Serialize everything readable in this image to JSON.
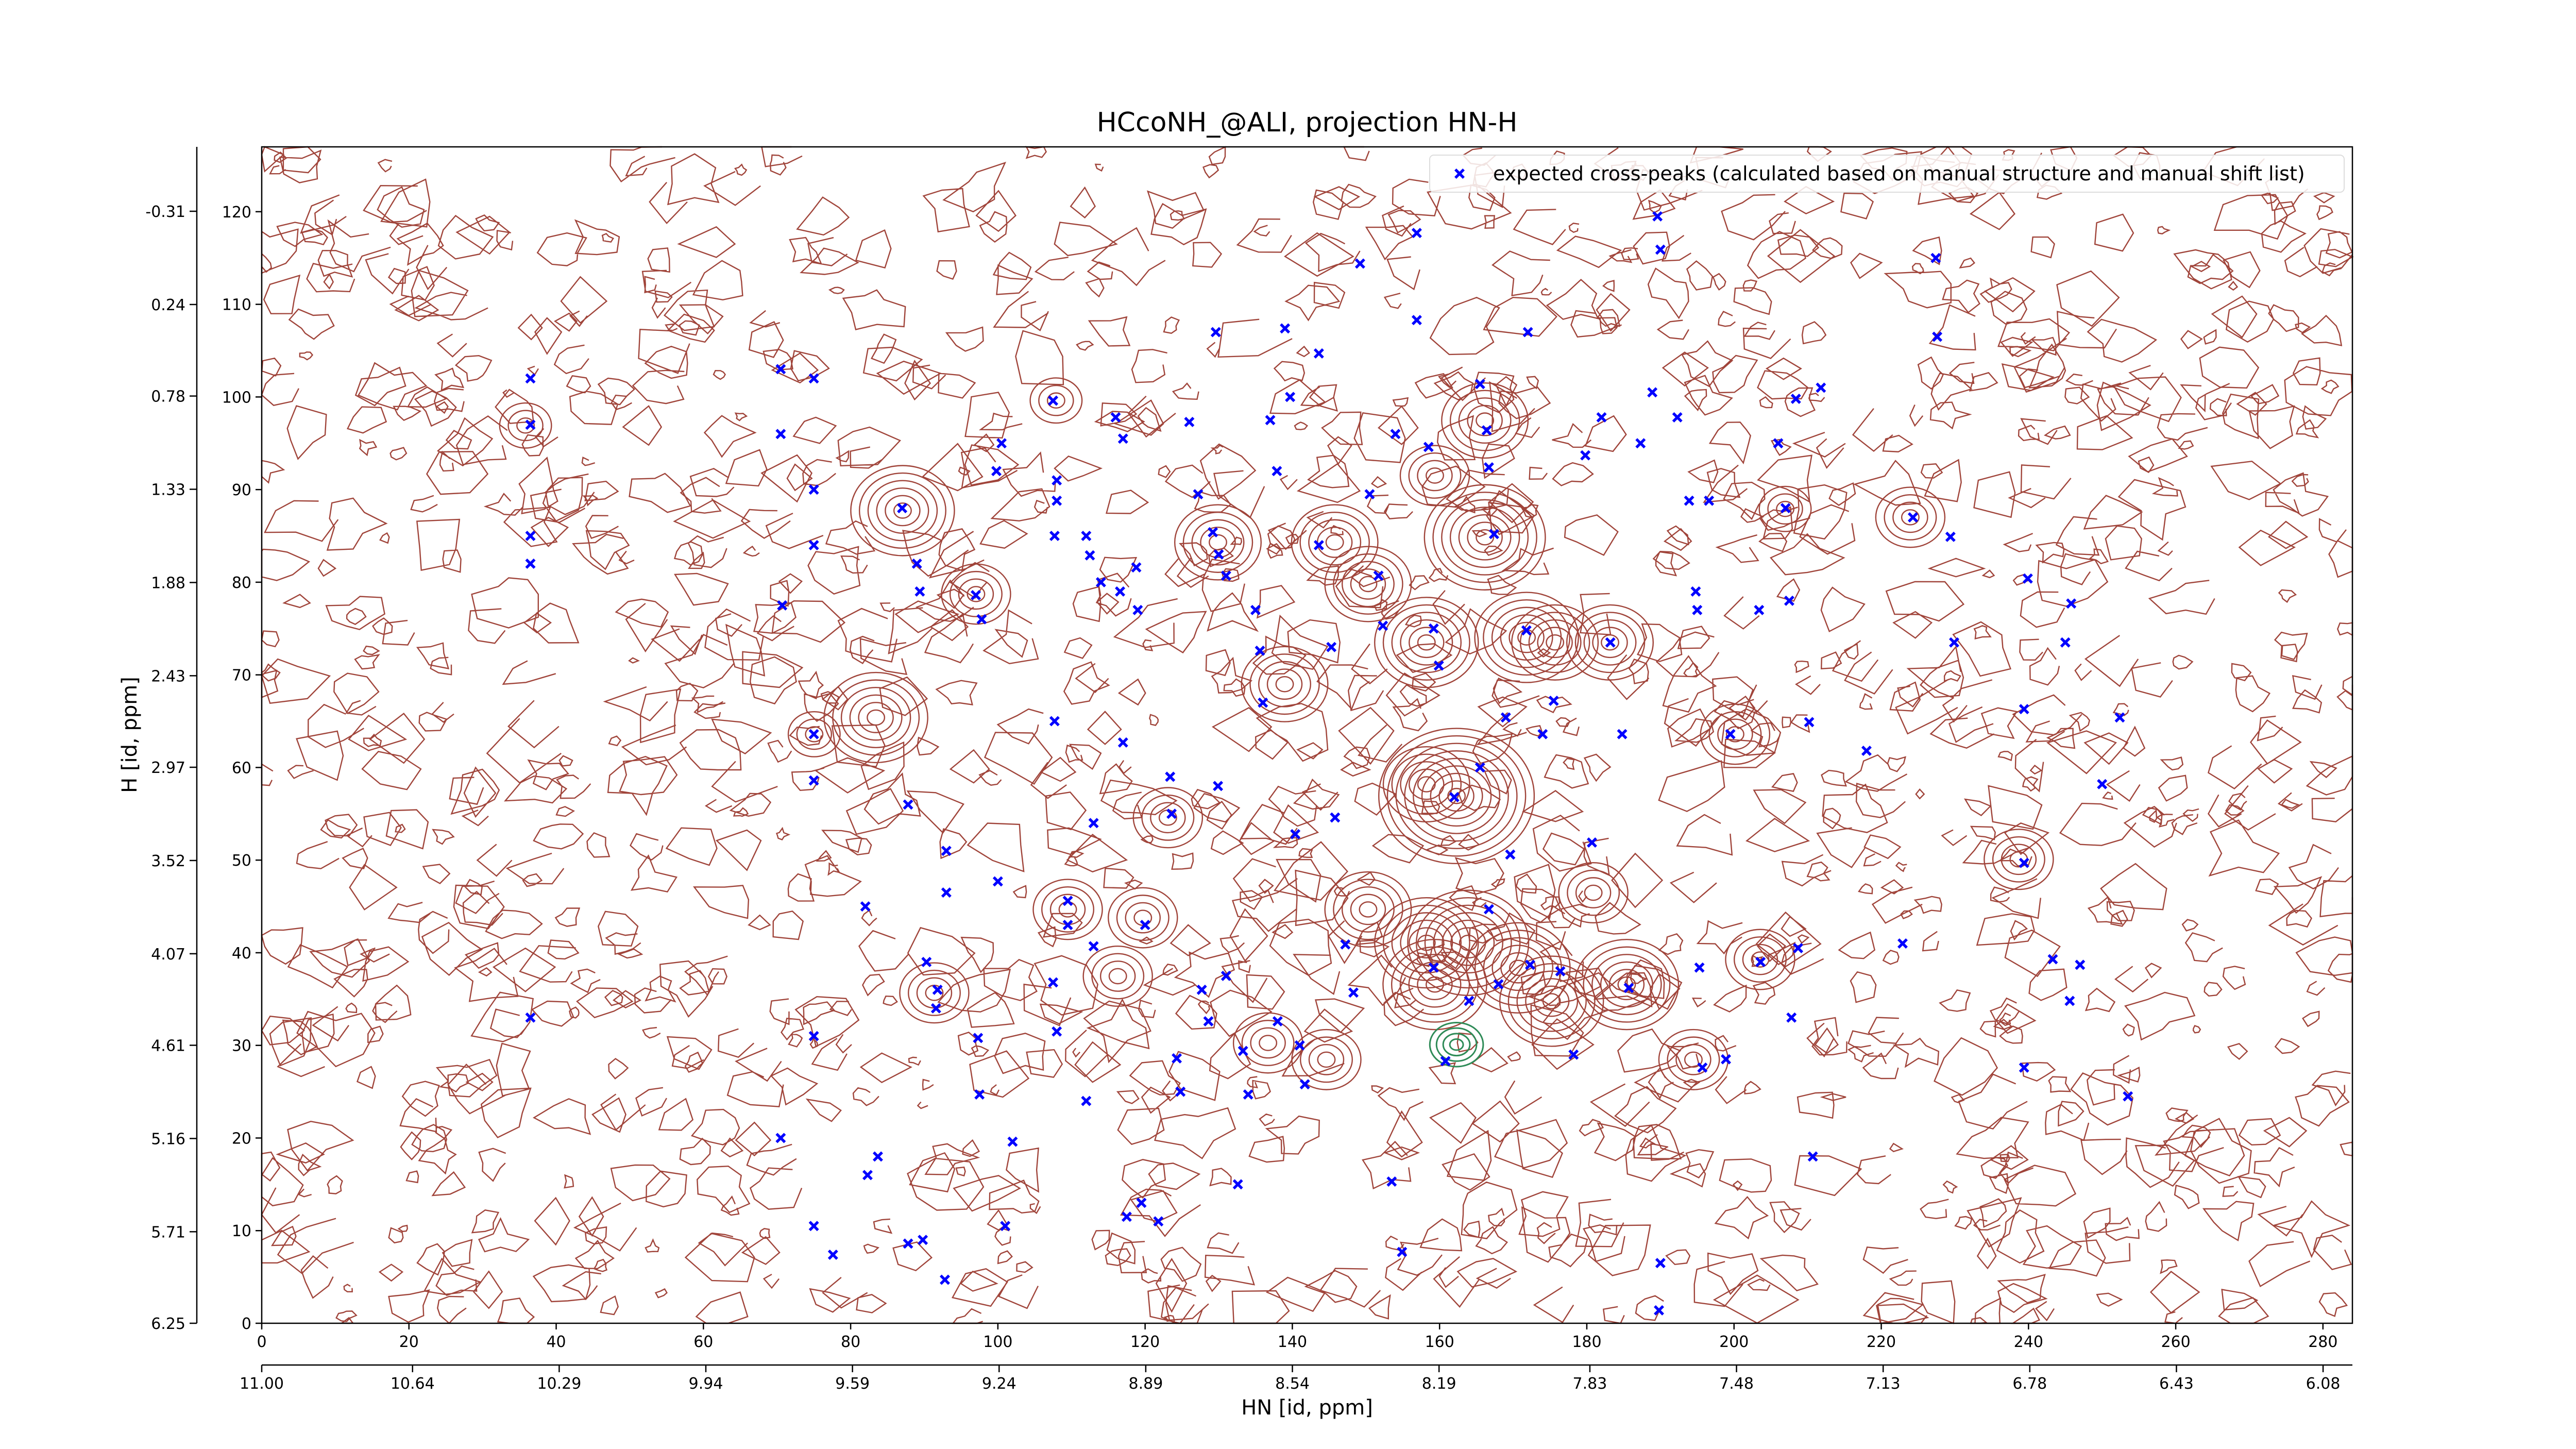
{
  "chart_data": {
    "type": "scatter",
    "title": "HCcoNH_@ALI, projection HN-H",
    "xlabel": "HN [id, ppm]",
    "ylabel": "H [id, ppm]",
    "xlim": [
      0,
      284
    ],
    "xticks": [
      0,
      20,
      40,
      60,
      80,
      100,
      120,
      140,
      160,
      180,
      200,
      220,
      240,
      260,
      280
    ],
    "ylim": [
      0,
      127
    ],
    "yticks": [
      0,
      10,
      20,
      30,
      40,
      50,
      60,
      70,
      80,
      90,
      100,
      110,
      120
    ],
    "x2lim": [
      11.0,
      6.01
    ],
    "x2ticks": [
      {
        "value": 11.0,
        "label": "11.00"
      },
      10.64,
      10.29,
      9.94,
      9.59,
      9.24,
      8.89,
      8.54,
      8.19,
      7.83,
      7.48,
      7.13,
      6.78,
      6.43,
      6.08
    ],
    "y2lim": [
      6.25,
      -0.69
    ],
    "y2ticks": [
      6.25,
      5.71,
      5.16,
      4.61,
      4.07,
      3.52,
      2.97,
      2.43,
      1.88,
      1.33,
      0.78,
      0.24,
      -0.31
    ],
    "legend": "upper right",
    "series": [
      {
        "name": "expected cross-peaks (calculated based on manual structure and manual shift list)",
        "color": "#0000ff",
        "x": [
          36.5,
          36.5,
          36.5,
          36.5,
          36.5,
          70.5,
          70.5,
          70.7,
          70.5,
          75,
          75,
          75,
          75,
          75,
          75,
          75,
          77.6,
          82,
          82.3,
          83.7,
          87,
          87.8,
          89,
          89.4,
          90.3,
          91.6,
          91.8,
          87.8,
          89.8,
          92.8,
          93,
          93,
          97,
          97.8,
          97.3,
          97.5,
          100,
          100.5,
          99.8,
          101,
          102,
          107.5,
          108,
          108,
          107.7,
          107.7,
          107.5,
          108,
          109.5,
          109.5,
          112,
          112.5,
          113,
          112,
          113,
          114,
          116,
          117,
          116.6,
          118.8,
          119,
          117,
          117.5,
          119.5,
          120,
          121.8,
          123.4,
          123.6,
          124.3,
          124.8,
          126,
          127.2,
          127.7,
          128.6,
          129.2,
          130,
          131,
          129.6,
          129.9,
          131,
          132.6,
          133.3,
          134,
          135,
          135.6,
          136,
          137,
          137.9,
          138,
          139,
          139.7,
          140.4,
          141,
          141.7,
          143.6,
          143.6,
          145.3,
          145.8,
          147.2,
          148.3,
          149.2,
          150.5,
          151.7,
          152.3,
          154,
          153.5,
          154.9,
          156.9,
          156.9,
          158.5,
          159.2,
          159.9,
          159.2,
          160.8,
          162,
          164,
          165.5,
          166.4,
          166.7,
          167.4,
          165.5,
          166.7,
          168,
          169,
          169.6,
          172,
          171.8,
          172.3,
          174,
          175.5,
          176.4,
          178.2,
          179.8,
          180.7,
          182,
          183.2,
          184.8,
          185.7,
          187.3,
          188.9,
          189.6,
          190,
          190,
          189.8,
          192.3,
          193.9,
          194.8,
          195,
          195.3,
          195.7,
          196.6,
          198.9,
          199.5,
          203.4,
          203.6,
          206,
          207,
          207.5,
          208.4,
          207.8,
          208.7,
          210.7,
          210.2,
          211.8,
          218,
          222.9,
          224.3,
          227.4,
          227.6,
          229.4,
          229.9,
          239.4,
          239.4,
          239.9,
          239.4,
          243.3,
          245,
          245.6,
          247,
          253.5,
          252.4,
          250,
          245.8
        ],
        "values": [
          102,
          97,
          85,
          82,
          33,
          103,
          96,
          77.5,
          20,
          102,
          90,
          84,
          63.6,
          58.6,
          31,
          10.5,
          7.4,
          45,
          16,
          18,
          88,
          56,
          82,
          79,
          39,
          34,
          36,
          8.6,
          9,
          4.7,
          46.5,
          51,
          78.6,
          76,
          30.8,
          24.7,
          47.7,
          95,
          92,
          10.5,
          19.6,
          99.6,
          91,
          88.8,
          85,
          65,
          36.8,
          31.5,
          45.6,
          43,
          85,
          82.9,
          54,
          24,
          40.7,
          80,
          97.8,
          95.5,
          79,
          81.6,
          77,
          62.7,
          11.5,
          13,
          43,
          11,
          59,
          55,
          28.6,
          25,
          97.3,
          89.5,
          36,
          32.6,
          85.4,
          83,
          80.7,
          107,
          58,
          37.5,
          15,
          29.4,
          24.7,
          77,
          72.6,
          67,
          97.5,
          92,
          32.6,
          107.4,
          100,
          52.8,
          30,
          25.8,
          104.7,
          84,
          73,
          54.6,
          40.9,
          35.7,
          114.4,
          89.5,
          80.7,
          75.3,
          96,
          15.3,
          7.7,
          117.7,
          108.3,
          94.6,
          75,
          71,
          38.4,
          28.3,
          56.8,
          34.8,
          101.4,
          96.4,
          92.4,
          85.2,
          60,
          44.7,
          36.6,
          65.4,
          50.6,
          107,
          74.8,
          38.7,
          63.6,
          67.2,
          38,
          29,
          93.7,
          51.9,
          97.8,
          73.5,
          63.6,
          36.2,
          95,
          100.5,
          119.5,
          115.9,
          6.5,
          1.4,
          97.8,
          88.8,
          79,
          77,
          38.4,
          27.6,
          88.8,
          28.5,
          63.6,
          77,
          39,
          95,
          88,
          78,
          99.8,
          33,
          40.5,
          18,
          64.9,
          101,
          61.8,
          41,
          87,
          115,
          106.5,
          84.9,
          73.5,
          49.7,
          66.3,
          80.4,
          27.6,
          39.3,
          73.5,
          34.8,
          38.7,
          24.5,
          65.4,
          58.2,
          77.7
        ]
      }
    ]
  }
}
